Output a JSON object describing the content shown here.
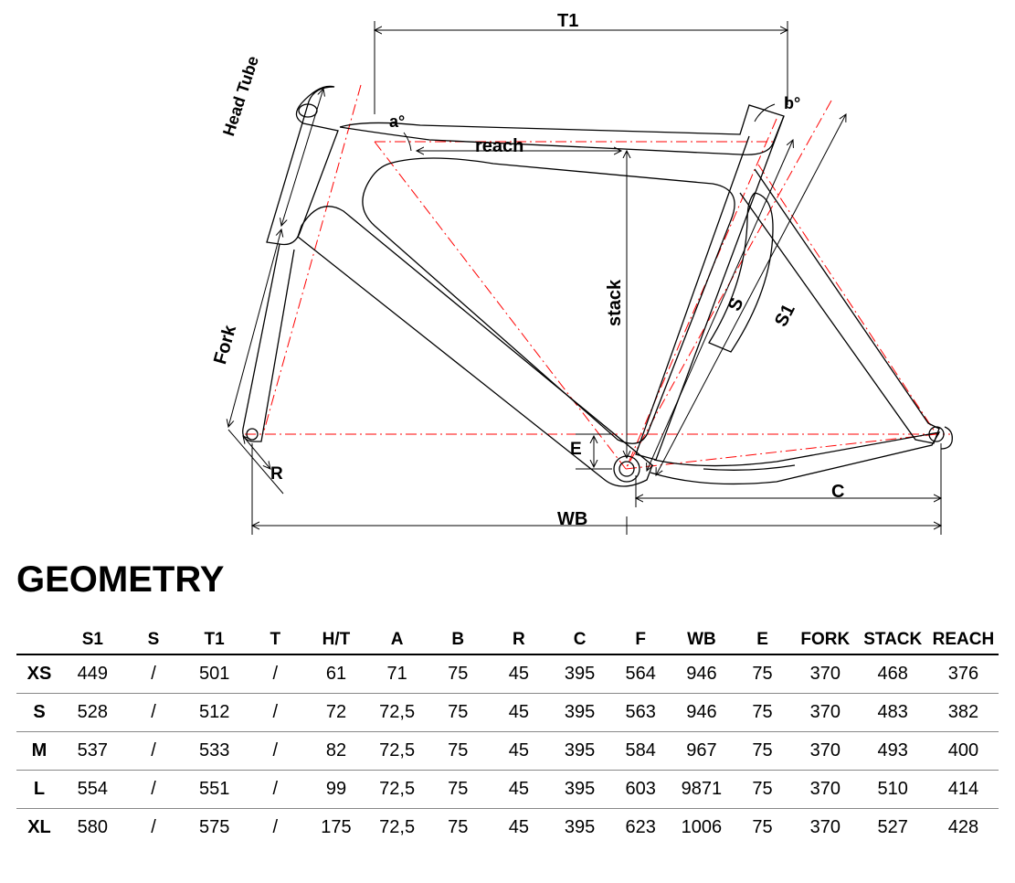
{
  "title": "GEOMETRY",
  "diagram": {
    "type": "engineering-drawing",
    "outline_color": "#000000",
    "outline_width": 1.2,
    "construction_color": "#ff0000",
    "construction_dash": "10 4 2 4",
    "dimension_color": "#000000",
    "label_fontsize": 18,
    "label_fontweight": 700,
    "labels": {
      "T1": "T1",
      "a": "a°",
      "b": "b°",
      "reach": "reach",
      "stack": "stack",
      "S": "S",
      "S1": "S1",
      "HeadTube": "Head Tube",
      "Fork": "Fork",
      "R": "R",
      "E": "E",
      "WB": "WB",
      "C": "C"
    }
  },
  "table": {
    "columns": [
      "",
      "S1",
      "S",
      "T1",
      "T",
      "H/T",
      "A",
      "B",
      "R",
      "C",
      "F",
      "WB",
      "E",
      "FORK",
      "STACK",
      "REACH"
    ],
    "rows": [
      [
        "XS",
        "449",
        "/",
        "501",
        "/",
        "61",
        "71",
        "75",
        "45",
        "395",
        "564",
        "946",
        "75",
        "370",
        "468",
        "376"
      ],
      [
        "S",
        "528",
        "/",
        "512",
        "/",
        "72",
        "72,5",
        "75",
        "45",
        "395",
        "563",
        "946",
        "75",
        "370",
        "483",
        "382"
      ],
      [
        "M",
        "537",
        "/",
        "533",
        "/",
        "82",
        "72,5",
        "75",
        "45",
        "395",
        "584",
        "967",
        "75",
        "370",
        "493",
        "400"
      ],
      [
        "L",
        "554",
        "/",
        "551",
        "/",
        "99",
        "72,5",
        "75",
        "45",
        "395",
        "603",
        "9871",
        "75",
        "370",
        "510",
        "414"
      ],
      [
        "XL",
        "580",
        "/",
        "575",
        "/",
        "175",
        "72,5",
        "75",
        "45",
        "395",
        "623",
        "1006",
        "75",
        "370",
        "527",
        "428"
      ]
    ],
    "header_fontsize": 19,
    "cell_fontsize": 20,
    "border_color_heavy": "#000000",
    "border_color_light": "#888888"
  }
}
